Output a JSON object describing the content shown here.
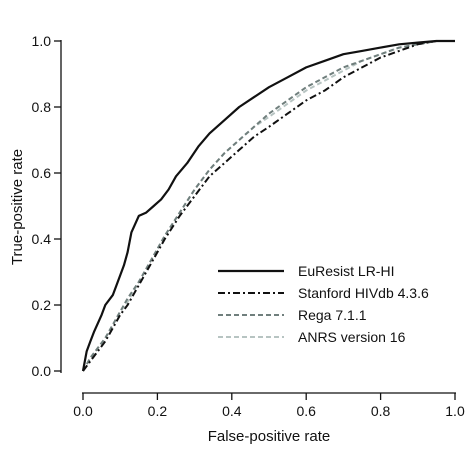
{
  "chart_data": {
    "type": "line",
    "title": "",
    "xlabel": "False-positive rate",
    "ylabel": "True-positive rate",
    "xlim": [
      0.0,
      1.0
    ],
    "ylim": [
      0.0,
      1.0
    ],
    "xticks": [
      "0.0",
      "0.2",
      "0.4",
      "0.6",
      "0.8",
      "1.0"
    ],
    "yticks": [
      "0.0",
      "0.2",
      "0.4",
      "0.6",
      "0.8",
      "1.0"
    ],
    "grid": false,
    "legend_position": "bottom-right",
    "series": [
      {
        "name": "EuResist LR-HI",
        "color": "#111111",
        "dash": "solid",
        "x": [
          0.0,
          0.01,
          0.02,
          0.03,
          0.05,
          0.06,
          0.08,
          0.09,
          0.11,
          0.12,
          0.13,
          0.15,
          0.17,
          0.19,
          0.2,
          0.21,
          0.23,
          0.25,
          0.28,
          0.31,
          0.34,
          0.38,
          0.42,
          0.46,
          0.5,
          0.55,
          0.6,
          0.65,
          0.7,
          0.75,
          0.8,
          0.85,
          0.9,
          0.95,
          1.0
        ],
        "y": [
          0.0,
          0.06,
          0.09,
          0.12,
          0.17,
          0.2,
          0.23,
          0.26,
          0.32,
          0.36,
          0.42,
          0.47,
          0.48,
          0.5,
          0.51,
          0.52,
          0.55,
          0.59,
          0.63,
          0.68,
          0.72,
          0.76,
          0.8,
          0.83,
          0.86,
          0.89,
          0.92,
          0.94,
          0.96,
          0.97,
          0.98,
          0.99,
          0.995,
          1.0,
          1.0
        ]
      },
      {
        "name": "Stanford HIVdb 4.3.6",
        "color": "#111111",
        "dash": "dashdot",
        "x": [
          0.0,
          0.02,
          0.04,
          0.06,
          0.08,
          0.1,
          0.12,
          0.15,
          0.18,
          0.22,
          0.26,
          0.3,
          0.34,
          0.38,
          0.42,
          0.46,
          0.5,
          0.55,
          0.6,
          0.65,
          0.7,
          0.75,
          0.8,
          0.85,
          0.9,
          0.95,
          1.0
        ],
        "y": [
          0.0,
          0.03,
          0.06,
          0.09,
          0.13,
          0.17,
          0.2,
          0.26,
          0.32,
          0.4,
          0.47,
          0.53,
          0.59,
          0.63,
          0.67,
          0.71,
          0.74,
          0.78,
          0.82,
          0.85,
          0.89,
          0.92,
          0.95,
          0.97,
          0.99,
          1.0,
          1.0
        ]
      },
      {
        "name": "Rega 7.1.1",
        "color": "#707f7d",
        "dash": "dashed",
        "x": [
          0.0,
          0.02,
          0.04,
          0.06,
          0.08,
          0.1,
          0.12,
          0.15,
          0.18,
          0.22,
          0.26,
          0.3,
          0.34,
          0.38,
          0.42,
          0.46,
          0.5,
          0.55,
          0.6,
          0.65,
          0.7,
          0.75,
          0.8,
          0.85,
          0.9,
          0.95,
          1.0
        ],
        "y": [
          0.0,
          0.04,
          0.07,
          0.1,
          0.14,
          0.18,
          0.22,
          0.27,
          0.33,
          0.41,
          0.48,
          0.55,
          0.61,
          0.66,
          0.7,
          0.74,
          0.78,
          0.82,
          0.86,
          0.89,
          0.92,
          0.94,
          0.96,
          0.98,
          0.99,
          1.0,
          1.0
        ]
      },
      {
        "name": "ANRS version 16",
        "color": "#b7c4c2",
        "dash": "dashed",
        "x": [
          0.0,
          0.02,
          0.04,
          0.06,
          0.08,
          0.1,
          0.12,
          0.15,
          0.18,
          0.22,
          0.26,
          0.3,
          0.34,
          0.38,
          0.42,
          0.46,
          0.5,
          0.55,
          0.6,
          0.65,
          0.7,
          0.75,
          0.8,
          0.85,
          0.9,
          0.95,
          1.0
        ],
        "y": [
          0.0,
          0.04,
          0.07,
          0.1,
          0.14,
          0.18,
          0.21,
          0.27,
          0.33,
          0.41,
          0.48,
          0.55,
          0.61,
          0.66,
          0.7,
          0.74,
          0.77,
          0.81,
          0.85,
          0.88,
          0.91,
          0.94,
          0.96,
          0.98,
          0.99,
          1.0,
          1.0
        ]
      }
    ]
  }
}
